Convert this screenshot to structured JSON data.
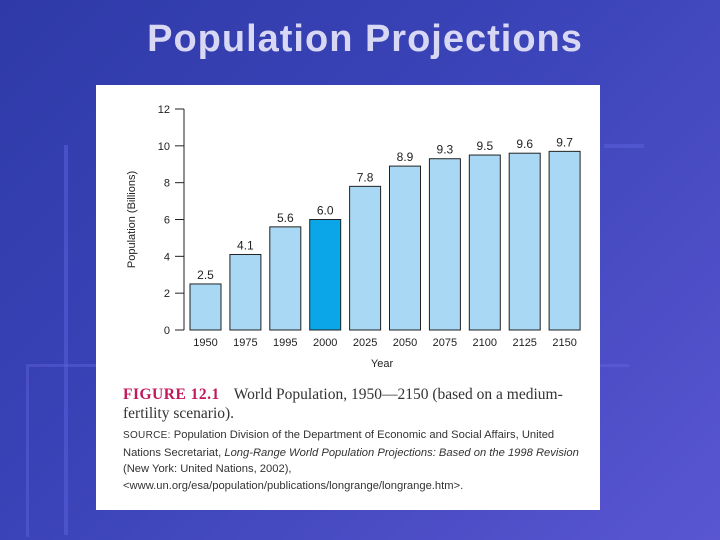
{
  "slide": {
    "title": "Population Projections"
  },
  "figure": {
    "label": "FIGURE 12.1",
    "caption": "World Population, 1950—2150 (based on a medium-fertility scenario).",
    "source_label": "SOURCE:",
    "source_text_1": " Population Division of the Department of Economic and Social Affairs, United Nations Secretariat, ",
    "source_italic": "Long-Range World Population Projections: Based on the 1998 Revision",
    "source_text_2": " (New York: United Nations, 2002), <www.un.org/esa/population/publications/longrange/longrange.htm>."
  },
  "chart_data": {
    "type": "bar",
    "title": "",
    "xlabel": "Year",
    "ylabel": "Population (Billions)",
    "ylim": [
      0,
      12
    ],
    "yticks": [
      0,
      2,
      4,
      6,
      8,
      10,
      12
    ],
    "categories": [
      "1950",
      "1975",
      "1995",
      "2000",
      "2025",
      "2050",
      "2075",
      "2100",
      "2125",
      "2150"
    ],
    "values": [
      2.5,
      4.1,
      5.6,
      6.0,
      7.8,
      8.9,
      9.3,
      9.5,
      9.6,
      9.7
    ],
    "value_labels": [
      "2.5",
      "4.1",
      "5.6",
      "6.0",
      "7.8",
      "8.9",
      "9.3",
      "9.5",
      "9.6",
      "9.7"
    ],
    "highlight_category": "2000",
    "colors": {
      "bar": "#a8d8f4",
      "highlight": "#0aa6e8",
      "edge": "#222222"
    }
  }
}
